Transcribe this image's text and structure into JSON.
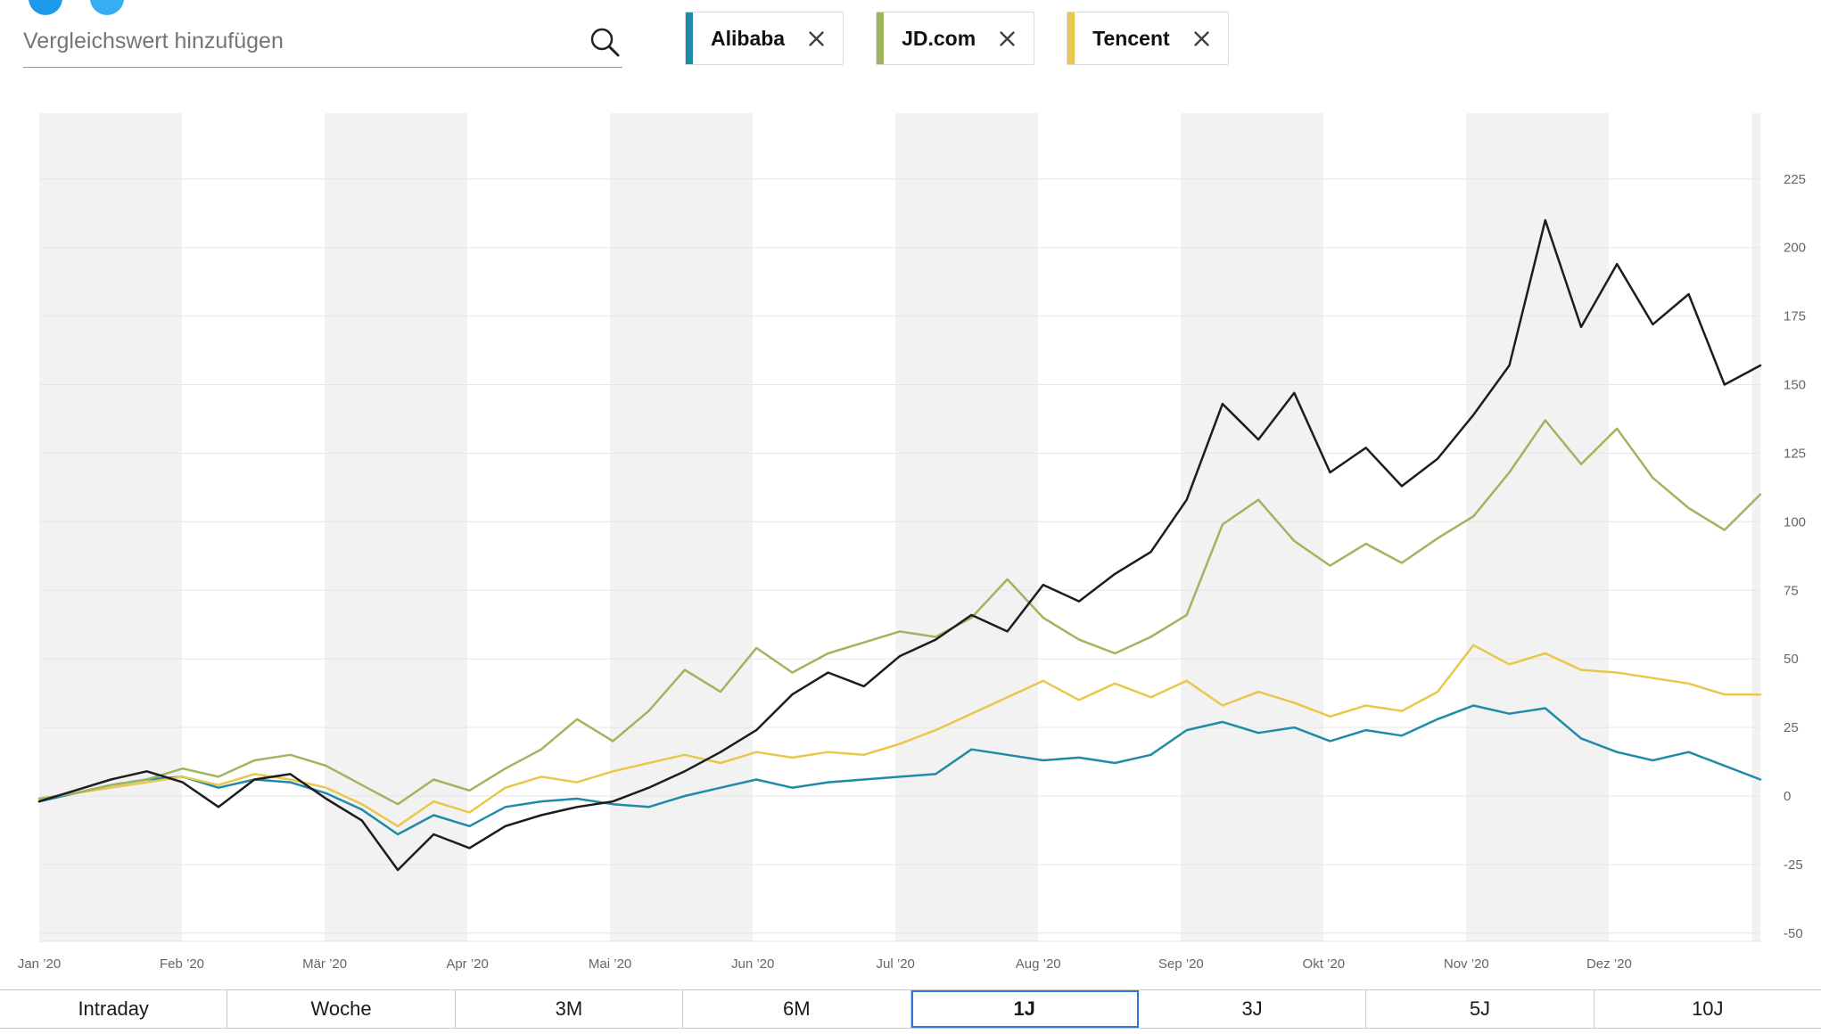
{
  "search": {
    "placeholder": "Vergleichswert hinzufügen"
  },
  "top_icons": [
    {
      "name": "cropped-circle-icon-1",
      "color": "#1d9ae9"
    },
    {
      "name": "cropped-circle-icon-2",
      "color": "#35aef2"
    }
  ],
  "chips": [
    {
      "label": "Alibaba",
      "color": "#1f8ba8"
    },
    {
      "label": "JD.com",
      "color": "#9fb55f"
    },
    {
      "label": "Tencent",
      "color": "#e8c84a"
    }
  ],
  "chart_data": {
    "type": "line",
    "title": "",
    "x_labels": [
      "Jan ’20",
      "Feb ’20",
      "Mär ’20",
      "Apr ’20",
      "Mai ’20",
      "Jun ’20",
      "Jul ’20",
      "Aug ’20",
      "Sep ’20",
      "Okt ’20",
      "Nov ’20",
      "Dez ’20"
    ],
    "y_ticks": [
      225,
      200,
      175,
      150,
      125,
      100,
      75,
      50,
      25,
      0,
      -25,
      -50
    ],
    "y_domain": [
      -53,
      249
    ],
    "months_visible": 12.06,
    "grid": true,
    "legend_position": "top-chips",
    "stripe_color": "#f2f2f2",
    "grid_color": "#e6e6e6",
    "axis_label_color": "#666666",
    "series": [
      {
        "name": "Alibaba",
        "color": "#1f8ba8",
        "values": [
          -2,
          1,
          4,
          6,
          7,
          3,
          6,
          5,
          1,
          -5,
          -14,
          -7,
          -11,
          -4,
          -2,
          -1,
          -3,
          -4,
          0,
          3,
          6,
          3,
          5,
          6,
          7,
          8,
          17,
          15,
          13,
          14,
          12,
          15,
          24,
          27,
          23,
          25,
          20,
          24,
          22,
          28,
          33,
          30,
          32,
          21,
          16,
          13,
          16,
          11,
          6
        ]
      },
      {
        "name": "Tencent",
        "color": "#e8c84a",
        "values": [
          -1,
          1,
          3,
          5,
          7,
          4,
          8,
          6,
          3,
          -3,
          -11,
          -2,
          -6,
          3,
          7,
          5,
          9,
          12,
          15,
          12,
          16,
          14,
          16,
          15,
          19,
          24,
          30,
          36,
          42,
          35,
          41,
          36,
          42,
          33,
          38,
          34,
          29,
          33,
          31,
          38,
          55,
          48,
          52,
          46,
          45,
          43,
          41,
          37,
          37
        ]
      },
      {
        "name": "JD.com",
        "color": "#9fb55f",
        "values": [
          -1,
          1,
          4,
          6,
          10,
          7,
          13,
          15,
          11,
          4,
          -3,
          6,
          2,
          10,
          17,
          28,
          20,
          31,
          46,
          38,
          54,
          45,
          52,
          56,
          60,
          58,
          65,
          79,
          65,
          57,
          52,
          58,
          66,
          99,
          108,
          93,
          84,
          92,
          85,
          94,
          102,
          118,
          137,
          121,
          134,
          116,
          105,
          97,
          110
        ]
      },
      {
        "name": "",
        "color": "#1d1d1d",
        "values": [
          -2,
          2,
          6,
          9,
          5,
          -4,
          6,
          8,
          -1,
          -9,
          -27,
          -14,
          -19,
          -11,
          -7,
          -4,
          -2,
          3,
          9,
          16,
          24,
          37,
          45,
          40,
          51,
          57,
          66,
          60,
          77,
          71,
          81,
          89,
          108,
          143,
          130,
          147,
          118,
          127,
          113,
          123,
          139,
          157,
          210,
          171,
          194,
          172,
          183,
          150,
          157
        ]
      }
    ]
  },
  "tabs": {
    "items": [
      "Intraday",
      "Woche",
      "3M",
      "6M",
      "1J",
      "3J",
      "5J",
      "10J"
    ],
    "active": "1J"
  },
  "colors": {
    "accent_blue": "#2e75d6",
    "close_icon": "#3c4043",
    "search_underline": "#9a9a9a"
  }
}
